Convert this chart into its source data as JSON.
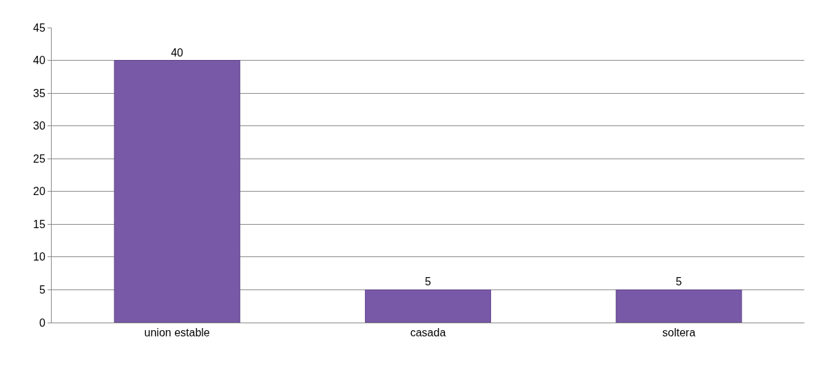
{
  "chart_data": {
    "type": "bar",
    "categories": [
      "union estable",
      "casada",
      "soltera"
    ],
    "values": [
      40,
      5,
      5
    ],
    "color": "#7859a8",
    "ylim": [
      0,
      45
    ],
    "yticks": [
      0,
      5,
      10,
      15,
      20,
      25,
      30,
      35,
      40,
      45
    ],
    "grid": "y",
    "data_labels": true,
    "legend": false
  }
}
